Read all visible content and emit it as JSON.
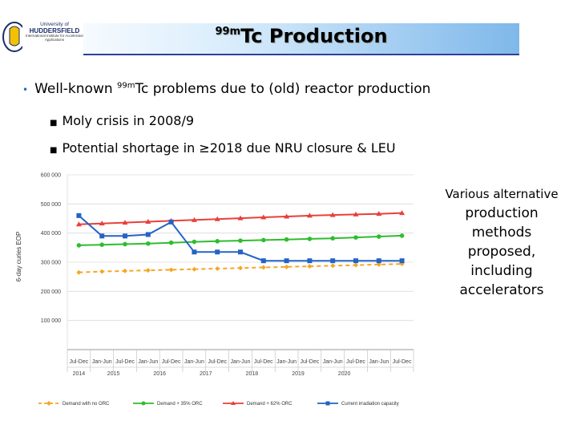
{
  "header": {
    "logo": {
      "line1": "University of",
      "line2": "HUDDERSFIELD",
      "line3": "International Institute for Accelerator Applications"
    },
    "title_sup": "99m",
    "title_main": "Tc Production"
  },
  "bullets": {
    "main_pre": "Well-known ",
    "main_sup": "99m",
    "main_post": "Tc problems due to (old) reactor production",
    "sub1": "Moly crisis in 2008/9",
    "sub2": "Potential shortage in ≥2018 due NRU closure & LEU"
  },
  "side_note": [
    "Various alternative",
    "production",
    "methods",
    "proposed,",
    "including",
    "accelerators"
  ],
  "colors": {
    "orange": "#f5a623",
    "green": "#2ebd2e",
    "red": "#e8403a",
    "blue": "#2463c5"
  },
  "chart_data": {
    "type": "line",
    "title": "",
    "ylabel": "6-day curies EOP",
    "xlabel": "",
    "ylim": [
      0,
      600000
    ],
    "yticks": [
      "600 000",
      "500 000",
      "400 000",
      "300 000",
      "200 000",
      "100 000"
    ],
    "categories": [
      "Jul-Dec",
      "Jan-Jun",
      "Jul-Dec",
      "Jan-Jun",
      "Jul-Dec",
      "Jan-Jun",
      "Jul-Dec",
      "Jan-Jun",
      "Jul-Dec",
      "Jan-Jun",
      "Jul-Dec",
      "Jan-Jun",
      "Jul-Dec",
      "Jan-Jun",
      "Jul-Dec"
    ],
    "years": [
      "2014",
      "2015",
      "2016",
      "2017",
      "2018",
      "2019",
      "2020"
    ],
    "series": [
      {
        "name": "Demand with no ORC",
        "color": "#f5a623",
        "dashed": true,
        "values": [
          265000,
          268000,
          270000,
          272000,
          274000,
          276000,
          278000,
          280000,
          282000,
          284000,
          286000,
          288000,
          290000,
          292000,
          294000
        ]
      },
      {
        "name": "Demand + 35% ORC",
        "color": "#2ebd2e",
        "dashed": false,
        "values": [
          358000,
          360000,
          362000,
          364000,
          367000,
          370000,
          372000,
          374000,
          376000,
          378000,
          380000,
          382000,
          385000,
          388000,
          391000
        ]
      },
      {
        "name": "Demand + 62% ORC",
        "color": "#e8403a",
        "dashed": false,
        "values": [
          430000,
          433000,
          436000,
          439000,
          442000,
          445000,
          448000,
          451000,
          454000,
          457000,
          460000,
          462000,
          464000,
          466000,
          469000
        ]
      },
      {
        "name": "Current irradiation capacity",
        "color": "#2463c5",
        "dashed": false,
        "values": [
          460000,
          390000,
          390000,
          395000,
          438000,
          335000,
          335000,
          335000,
          305000,
          305000,
          305000,
          305000,
          305000,
          305000,
          305000
        ]
      }
    ]
  }
}
